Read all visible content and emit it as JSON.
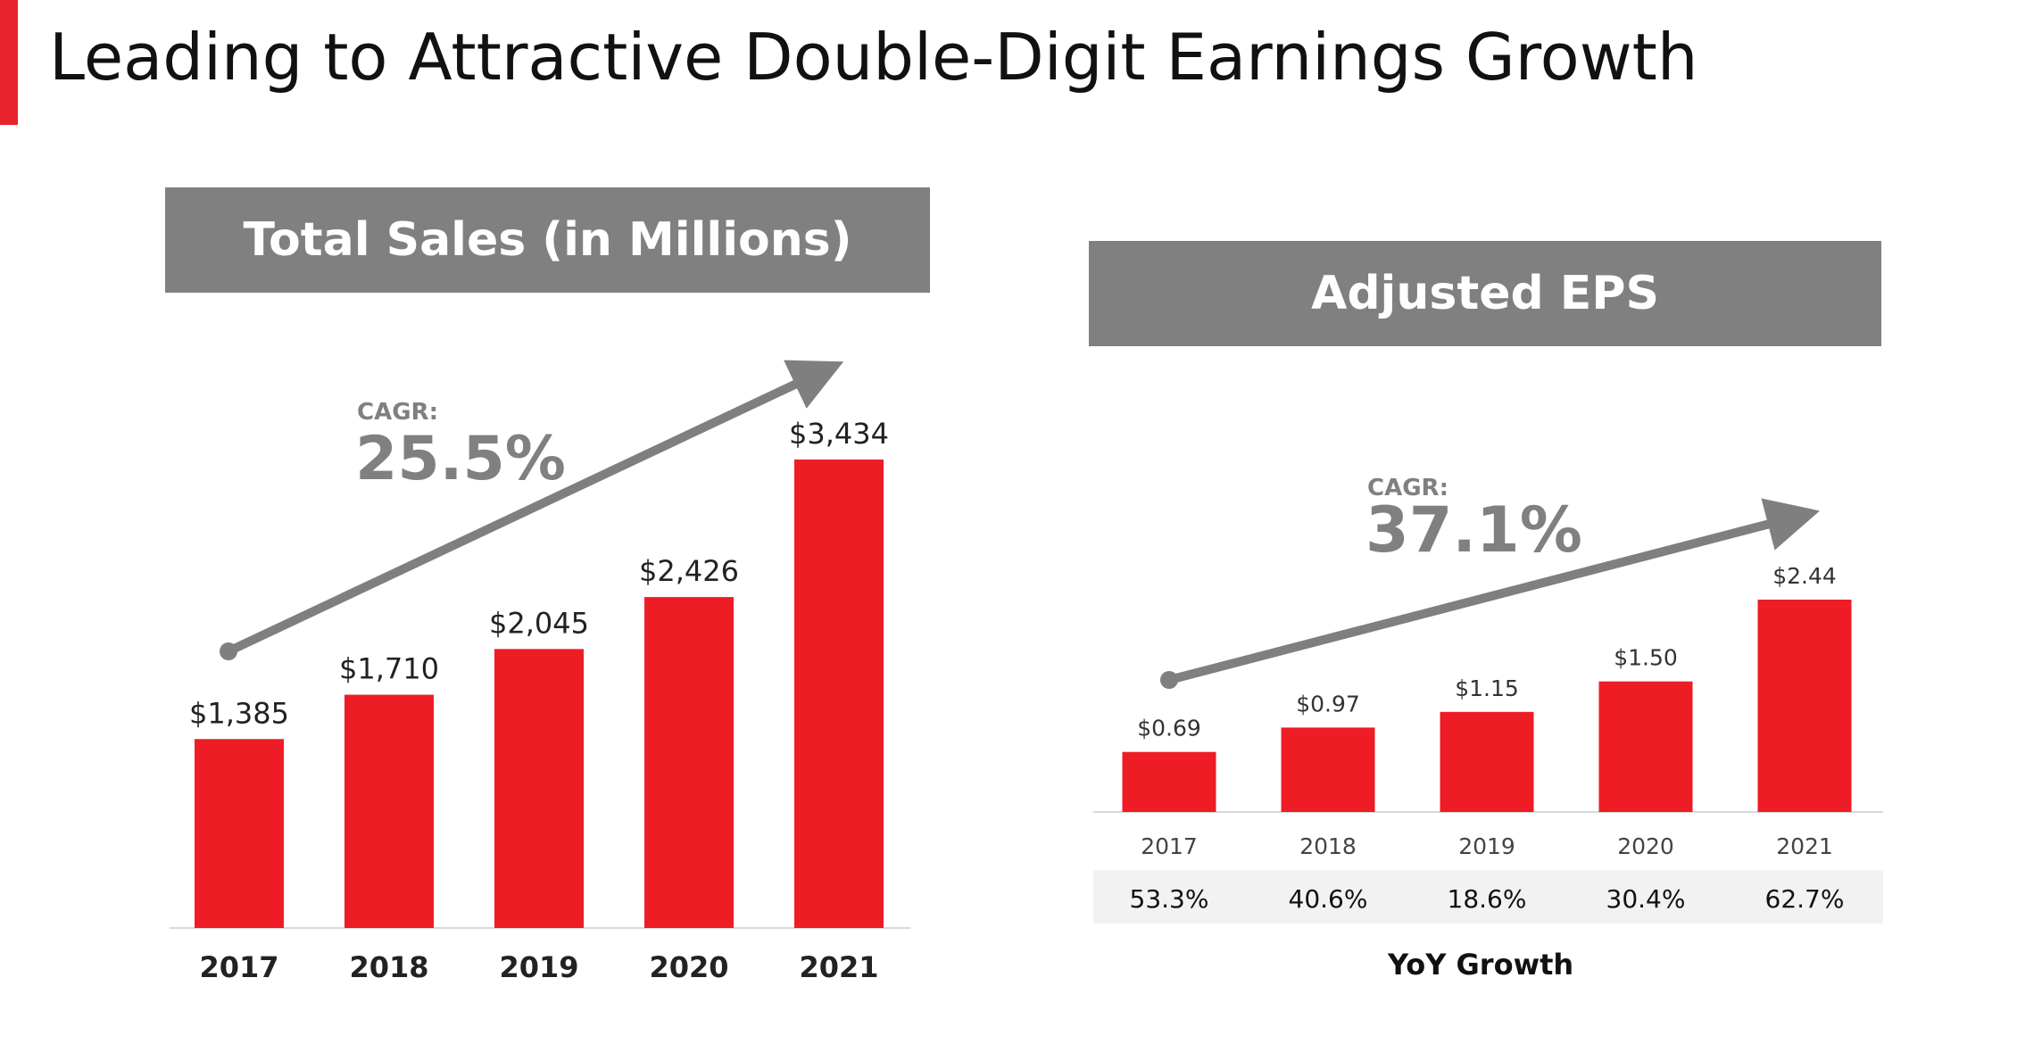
{
  "title": "Leading to Attractive Double-Digit Earnings Growth",
  "colors": {
    "accent": "#e8232c",
    "bar": "#ee1c25",
    "header_bg": "#808080",
    "arrow": "#7f7f7f",
    "growth_row_bg": "#f2f2f2"
  },
  "chart_data": [
    {
      "type": "bar",
      "title": "Total Sales (in Millions)",
      "categories": [
        "2017",
        "2018",
        "2019",
        "2020",
        "2021"
      ],
      "values": [
        1385,
        1710,
        2045,
        2426,
        3434
      ],
      "data_labels": [
        "$1,385",
        "$1,710",
        "$2,045",
        "$2,426",
        "$3,434"
      ],
      "ylim": [
        0,
        3800
      ],
      "annotation": {
        "label": "CAGR:",
        "value": "25.5%"
      }
    },
    {
      "type": "bar",
      "title": "Adjusted EPS",
      "categories": [
        "2017",
        "2018",
        "2019",
        "2020",
        "2021"
      ],
      "values": [
        0.69,
        0.97,
        1.15,
        1.5,
        2.44
      ],
      "data_labels": [
        "$0.69",
        "$0.97",
        "$1.15",
        "$1.50",
        "$2.44"
      ],
      "ylim": [
        0,
        2.6
      ],
      "annotation": {
        "label": "CAGR:",
        "value": "37.1%"
      },
      "yoy_growth": [
        "53.3%",
        "40.6%",
        "18.6%",
        "30.4%",
        "62.7%"
      ],
      "yoy_caption": "YoY Growth"
    }
  ]
}
